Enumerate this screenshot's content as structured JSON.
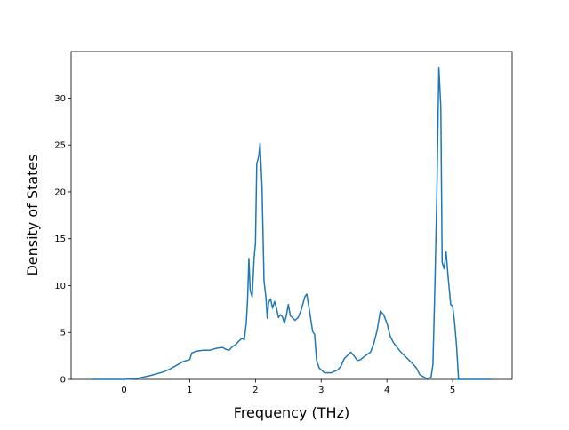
{
  "chart_data": {
    "type": "line",
    "x_label": "Frequency (THz)",
    "y_label": "Density of States",
    "x": [
      -0.5,
      0,
      0.2,
      0.4,
      0.6,
      0.7,
      0.8,
      0.9,
      1.0,
      1.03,
      1.1,
      1.2,
      1.3,
      1.4,
      1.5,
      1.55,
      1.6,
      1.65,
      1.7,
      1.75,
      1.8,
      1.83,
      1.86,
      1.88,
      1.9,
      1.92,
      1.95,
      1.98,
      2.0,
      2.02,
      2.05,
      2.07,
      2.1,
      2.13,
      2.16,
      2.18,
      2.2,
      2.23,
      2.26,
      2.29,
      2.32,
      2.35,
      2.38,
      2.41,
      2.44,
      2.47,
      2.5,
      2.53,
      2.56,
      2.6,
      2.65,
      2.7,
      2.75,
      2.78,
      2.82,
      2.87,
      2.9,
      2.93,
      2.97,
      3.05,
      3.15,
      3.25,
      3.3,
      3.35,
      3.45,
      3.5,
      3.55,
      3.6,
      3.65,
      3.75,
      3.8,
      3.85,
      3.9,
      3.95,
      4.0,
      4.05,
      4.1,
      4.2,
      4.3,
      4.4,
      4.45,
      4.5,
      4.6,
      4.67,
      4.7,
      4.73,
      4.76,
      4.79,
      4.82,
      4.84,
      4.87,
      4.9,
      4.93,
      4.97,
      5.0,
      5.03,
      5.06,
      5.09,
      5.2,
      5.6
    ],
    "series": [
      {
        "color": "#1f77b4",
        "values": [
          0,
          0,
          0.1,
          0.4,
          0.8,
          1.1,
          1.5,
          1.9,
          2.1,
          2.8,
          3.0,
          3.1,
          3.1,
          3.3,
          3.4,
          3.2,
          3.1,
          3.5,
          3.7,
          4.1,
          4.4,
          4.2,
          6,
          8.5,
          12.9,
          9.5,
          8.8,
          13,
          14.5,
          23,
          23.8,
          25.2,
          20.5,
          10.5,
          8.7,
          6.5,
          8.2,
          8.6,
          7.6,
          8.3,
          7.6,
          6.6,
          6.9,
          6.7,
          6.0,
          6.8,
          8.0,
          6.8,
          6.6,
          6.3,
          6.6,
          7.5,
          8.8,
          9.1,
          7.4,
          5.1,
          4.8,
          2.0,
          1.2,
          0.7,
          0.7,
          1.0,
          1.4,
          2.2,
          2.9,
          2.5,
          2.0,
          2.1,
          2.4,
          2.9,
          3.8,
          5.2,
          7.3,
          6.9,
          6.0,
          4.6,
          3.9,
          3.0,
          2.3,
          1.6,
          1.2,
          0.5,
          0.1,
          0.2,
          1.6,
          10,
          20,
          33.3,
          29,
          12.5,
          11.8,
          13.6,
          11.0,
          8.0,
          7.8,
          6.0,
          3.5,
          0,
          0,
          0
        ]
      }
    ],
    "xlim": [
      -0.805,
      5.905
    ],
    "ylim": [
      0,
      34.97
    ],
    "xticks": [
      0,
      1,
      2,
      3,
      4,
      5
    ],
    "yticks": [
      0,
      5,
      10,
      15,
      20,
      25,
      30
    ]
  }
}
